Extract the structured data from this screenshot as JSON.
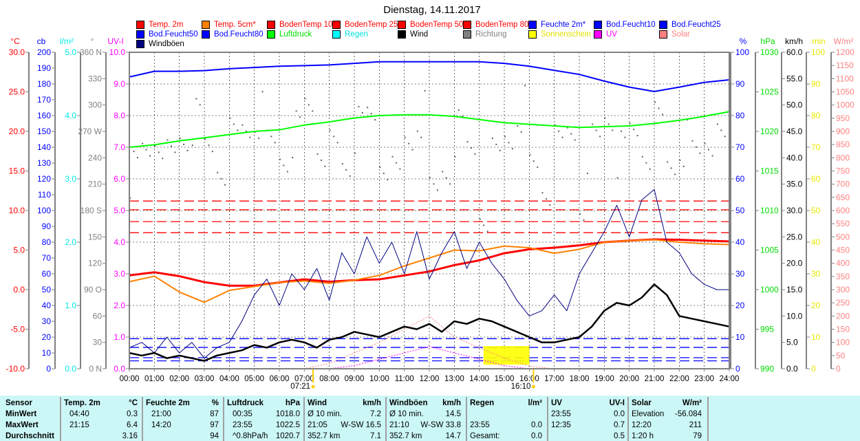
{
  "title": "Dienstag, 14.11.2017",
  "legend": [
    {
      "label": "Temp. 2m",
      "color": "#ff0000",
      "text_color": "#ff0000"
    },
    {
      "label": "Temp. 5cm*",
      "color": "#ff8000",
      "text_color": "#ff0000"
    },
    {
      "label": "BodenTemp 10",
      "color": "#ff0000",
      "text_color": "#ff0000"
    },
    {
      "label": "BodenTemp 25",
      "color": "#ff0000",
      "text_color": "#ff0000"
    },
    {
      "label": "BodenTemp 50",
      "color": "#ff0000",
      "text_color": "#ff0000"
    },
    {
      "label": "BodenTemp 80",
      "color": "#ff0000",
      "text_color": "#ff0000"
    },
    {
      "label": "Feuchte 2m*",
      "color": "#0000ff",
      "text_color": "#0000ff"
    },
    {
      "label": "Bod.Feucht10",
      "color": "#0000ff",
      "text_color": "#0000ff"
    },
    {
      "label": "Bod.Feucht25",
      "color": "#0000ff",
      "text_color": "#0000ff"
    },
    {
      "label": "Bod.Feucht50",
      "color": "#0000ff",
      "text_color": "#0000ff"
    },
    {
      "label": "Bod.Feucht80",
      "color": "#0000ff",
      "text_color": "#0000ff"
    },
    {
      "label": "Luftdruck",
      "color": "#00ff00",
      "text_color": "#00dd00"
    },
    {
      "label": "Regen",
      "color": "#00ffff",
      "text_color": "#00e0e0"
    },
    {
      "label": "Wind",
      "color": "#000000",
      "text_color": "#000000"
    },
    {
      "label": "Richtung",
      "color": "#808080",
      "text_color": "#808080"
    },
    {
      "label": "Sonnenschein",
      "color": "#ffff00",
      "text_color": "#e0e000"
    },
    {
      "label": "UV",
      "color": "#ff00ff",
      "text_color": "#ff00ff"
    },
    {
      "label": "Solar",
      "color": "#ff8080",
      "text_color": "#ff8080"
    },
    {
      "label": "Windböen",
      "color": "#000080",
      "text_color": "#000000"
    }
  ],
  "chart_data": {
    "type": "line",
    "title": "Dienstag, 14.11.2017",
    "x_ticks": [
      "00:00",
      "01:00",
      "02:00",
      "03:00",
      "04:00",
      "05:00",
      "06:00",
      "07:00",
      "08:00",
      "09:00",
      "10:00",
      "11:00",
      "12:00",
      "13:00",
      "14:00",
      "15:00",
      "16:00",
      "17:00",
      "18:00",
      "19:00",
      "20:00",
      "21:00",
      "22:00",
      "23:00",
      "24:00"
    ],
    "xlim_hours": [
      0,
      24
    ],
    "sunrise": "07:21",
    "sunset": "16:10",
    "axes_left": [
      {
        "id": "temp",
        "unit": "°C",
        "color": "#ff0000",
        "range": [
          -10,
          30
        ],
        "ticks": [
          "30.0",
          "25.0",
          "20.0",
          "15.0",
          "10.0",
          "5.0",
          "0.0",
          "-5.0",
          "-10.0"
        ]
      },
      {
        "id": "cb",
        "unit": "cb",
        "color": "#0000ff",
        "range": [
          0,
          200
        ],
        "ticks": [
          "200",
          "190",
          "180",
          "170",
          "160",
          "150",
          "140",
          "130",
          "120",
          "110",
          "100",
          "90",
          "80",
          "70",
          "60",
          "50",
          "40",
          "30",
          "20",
          "10",
          "0"
        ]
      },
      {
        "id": "rain",
        "unit": "l/m²",
        "color": "#00e8e8",
        "range": [
          0,
          5
        ],
        "ticks": [
          "5.0",
          "4.0",
          "3.0",
          "2.0",
          "1.0",
          "0.0"
        ]
      },
      {
        "id": "dir",
        "unit": "°",
        "color": "#808080",
        "range": [
          0,
          360
        ],
        "ticks": [
          "360 N",
          "330",
          "300",
          "270 W",
          "240",
          "210",
          "180 S",
          "150",
          "120",
          "90 O",
          "60",
          "30",
          "0 N"
        ]
      },
      {
        "id": "uv",
        "unit": "UV-I",
        "color": "#ff00ff",
        "range": [
          0,
          10
        ],
        "ticks": [
          "10.0",
          "9.0",
          "8.0",
          "7.0",
          "6.0",
          "5.0",
          "4.0",
          "3.0",
          "2.0",
          "1.0",
          "0.0"
        ]
      }
    ],
    "axes_right": [
      {
        "id": "hum",
        "unit": "%",
        "color": "#0000ff",
        "range": [
          0,
          100
        ],
        "ticks": [
          "100",
          "90",
          "80",
          "70",
          "60",
          "50",
          "40",
          "30",
          "20",
          "10",
          "0"
        ]
      },
      {
        "id": "hpa",
        "unit": "hPa",
        "color": "#00dd00",
        "range": [
          990,
          1030
        ],
        "ticks": [
          "1030",
          "1025",
          "1020",
          "1015",
          "1010",
          "1005",
          "1000",
          "995",
          "990"
        ]
      },
      {
        "id": "kmh",
        "unit": "km/h",
        "color": "#000000",
        "range": [
          0,
          60
        ],
        "ticks": [
          "60.0",
          "55.0",
          "50.0",
          "45.0",
          "40.0",
          "35.0",
          "30.0",
          "25.0",
          "20.0",
          "15.0",
          "10.0",
          "5.0",
          "0.0"
        ]
      },
      {
        "id": "min",
        "unit": "min",
        "color": "#e8e800",
        "range": [
          0,
          100
        ],
        "ticks": [
          "100",
          "90",
          "80",
          "70",
          "60",
          "50",
          "40",
          "30",
          "20",
          "10",
          "0"
        ]
      },
      {
        "id": "solar",
        "unit": "W/m²",
        "color": "#ff8080",
        "range": [
          0,
          1200
        ],
        "ticks": [
          "1200",
          "1150",
          "1100",
          "1050",
          "1000",
          "950",
          "900",
          "850",
          "800",
          "750",
          "700",
          "650",
          "600",
          "550",
          "500",
          "450",
          "400",
          "350",
          "300",
          "250",
          "200",
          "150",
          "100",
          "50",
          "0"
        ]
      }
    ],
    "series": [
      {
        "name": "Temp. 2m",
        "axis": "temp",
        "color": "#ff0000",
        "width": 3,
        "step_hours": 1,
        "values": [
          1.8,
          2.2,
          1.7,
          0.95,
          0.5,
          0.5,
          0.9,
          1.3,
          1.0,
          1.2,
          1.3,
          1.8,
          2.3,
          3.1,
          3.7,
          4.6,
          5.1,
          5.3,
          5.6,
          6.0,
          6.2,
          6.35,
          6.3,
          6.2,
          6.1
        ]
      },
      {
        "name": "Temp. 5cm*",
        "axis": "temp",
        "color": "#ff8000",
        "width": 2,
        "step_hours": 1,
        "values": [
          1.0,
          1.7,
          -0.3,
          -1.6,
          -0.1,
          0.4,
          0.9,
          1.1,
          0.8,
          1.2,
          1.8,
          3.0,
          4.0,
          5.0,
          4.9,
          5.5,
          5.3,
          4.6,
          5.1,
          6.0,
          6.2,
          6.3,
          6.0,
          5.8,
          5.7
        ]
      },
      {
        "name": "Feuchte 2m*",
        "axis": "hum",
        "color": "#0000ff",
        "width": 2,
        "step_hours": 1,
        "values": [
          92.2,
          94,
          94,
          94.2,
          94.8,
          95.2,
          95.6,
          95.8,
          96,
          96.5,
          97,
          97,
          97,
          97,
          97,
          96.5,
          95.6,
          94.3,
          93,
          90.9,
          89,
          87.6,
          89,
          90.5,
          91.3
        ]
      },
      {
        "name": "Luftdruck",
        "axis": "hpa",
        "color": "#00ff00",
        "width": 2,
        "step_hours": 1,
        "values": [
          1018.0,
          1018.3,
          1018.8,
          1019.2,
          1019.6,
          1020.0,
          1020.2,
          1020.8,
          1021.2,
          1021.7,
          1022.0,
          1022.1,
          1022.1,
          1021.9,
          1021.5,
          1021.1,
          1020.9,
          1020.7,
          1020.5,
          1020.6,
          1020.7,
          1021.0,
          1021.4,
          1021.9,
          1022.5
        ]
      },
      {
        "name": "Windböen",
        "axis": "kmh",
        "color": "#000080",
        "width": 1,
        "step_hours": 0.5,
        "values": [
          4,
          5,
          3,
          6,
          3,
          5,
          2,
          4,
          5,
          9,
          14,
          17,
          12,
          18,
          15,
          19,
          13,
          22,
          18,
          25,
          20,
          24,
          18,
          26,
          17,
          22,
          26,
          19,
          24,
          20,
          17,
          13,
          10,
          11,
          14,
          11,
          18,
          22,
          26,
          31,
          25,
          32,
          34,
          24,
          22,
          18,
          16,
          15,
          15
        ]
      },
      {
        "name": "Wind",
        "axis": "kmh",
        "color": "#000000",
        "width": 2.5,
        "step_hours": 0.5,
        "values": [
          3,
          2.5,
          3,
          2,
          2.5,
          2,
          1.5,
          2.5,
          3,
          3.5,
          4.5,
          4,
          5,
          5.5,
          5,
          4,
          5.5,
          6,
          7,
          6.5,
          6,
          7,
          8,
          7.5,
          8.5,
          7,
          9,
          8.5,
          9.5,
          9,
          8,
          7,
          6,
          5,
          5,
          5.5,
          6,
          8,
          11,
          12.5,
          12,
          13.5,
          16,
          14,
          10,
          9.5,
          9,
          8.5,
          8
        ]
      }
    ],
    "soil_levels": [
      {
        "name": "BodenTemp 10",
        "axis": "temp",
        "color": "#ff0000",
        "value": 11.2
      },
      {
        "name": "BodenTemp 25",
        "axis": "temp",
        "color": "#ff0000",
        "value": 10.1
      },
      {
        "name": "BodenTemp 50",
        "axis": "temp",
        "color": "#ff0000",
        "value": 8.6
      },
      {
        "name": "BodenTemp 80",
        "axis": "temp",
        "color": "#ff0000",
        "value": 7.2
      },
      {
        "name": "Bod.Feucht10",
        "axis": "cb",
        "color": "#0000ff",
        "value": 19
      },
      {
        "name": "Bod.Feucht25",
        "axis": "cb",
        "color": "#0000ff",
        "value": 13.5
      },
      {
        "name": "Bod.Feucht50",
        "axis": "cb",
        "color": "#0000ff",
        "value": 7
      },
      {
        "name": "Bod.Feucht80",
        "axis": "cb",
        "color": "#0000ff",
        "value": 5
      }
    ],
    "direction": {
      "name": "Richtung",
      "axis": "dir",
      "step_hours": 0.5,
      "values": [
        225,
        250,
        270,
        240,
        265,
        280,
        250,
        235,
        260,
        275,
        290,
        255,
        245,
        270,
        300,
        260,
        250,
        235,
        270,
        285,
        240,
        215,
        260,
        290,
        200,
        230,
        270,
        250,
        185,
        240,
        265,
        300,
        230,
        210,
        250,
        270,
        195,
        260,
        290,
        245,
        270,
        255,
        280,
        235,
        260,
        245,
        265,
        250
      ]
    },
    "sunshine": {
      "name": "Sonnenschein",
      "axis": "min",
      "blocks": [
        {
          "start": 14.17,
          "end": 15.0,
          "value": 5
        },
        {
          "start": 15.0,
          "end": 16.0,
          "value": 5
        }
      ]
    },
    "solar": {
      "name": "Solar",
      "axis": "solar",
      "step_hours": 1,
      "start": 7,
      "values": [
        0,
        20,
        60,
        100,
        150,
        200,
        120,
        80,
        40,
        10,
        0
      ]
    },
    "uv": {
      "name": "UV",
      "axis": "uv",
      "step_hours": 1,
      "start": 8,
      "values": [
        0,
        0.1,
        0.3,
        0.5,
        0.7,
        0.5,
        0.3,
        0.1,
        0
      ]
    }
  },
  "summary": {
    "columns": [
      {
        "header": [
          "Temp. 2m",
          "°C"
        ],
        "rows": [
          [
            "04:40",
            "0.3"
          ],
          [
            "21:15",
            "6.4"
          ],
          [
            "",
            "3.16"
          ]
        ]
      },
      {
        "header": [
          "Feuchte 2m",
          "%"
        ],
        "rows": [
          [
            "21:00",
            "87"
          ],
          [
            "14:20",
            "97"
          ],
          [
            "",
            "94"
          ]
        ]
      },
      {
        "header": [
          "Luftdruck",
          "hPa"
        ],
        "rows": [
          [
            "00:35",
            "1018.0"
          ],
          [
            "23:55",
            "1022.5"
          ],
          [
            "^0.8hPa/h",
            "1020.7"
          ]
        ]
      },
      {
        "header": [
          "Wind",
          "km/h"
        ],
        "rows": [
          [
            "Ø 10 min.",
            "7.2"
          ],
          [
            "21:05",
            "W-SW 16.5"
          ],
          [
            "352.7 km",
            "7.1"
          ]
        ]
      },
      {
        "header": [
          "Windböen",
          "km/h"
        ],
        "rows": [
          [
            "Ø 10 min.",
            "14.5"
          ],
          [
            "21:10",
            "W-SW 33.8"
          ],
          [
            "352.7 km",
            "14.7"
          ]
        ]
      },
      {
        "header": [
          "Regen",
          "l/m²"
        ],
        "rows": [
          [
            "",
            ""
          ],
          [
            "23:55",
            "0.0"
          ],
          [
            "Gesamt:",
            "0.0"
          ]
        ]
      },
      {
        "header": [
          "UV",
          "UV-I"
        ],
        "rows": [
          [
            "23:55",
            "0.0"
          ],
          [
            "12:35",
            "0.7"
          ],
          [
            "",
            "0.5"
          ]
        ]
      },
      {
        "header": [
          "Solar",
          "W/m²"
        ],
        "rows": [
          [
            "Elevation",
            "-56.084"
          ],
          [
            "12:20",
            "211"
          ],
          [
            "1:20 h",
            "79"
          ]
        ]
      }
    ],
    "row_labels": [
      "Sensor",
      "MinWert",
      "MaxWert",
      "Durchschnitt"
    ]
  }
}
